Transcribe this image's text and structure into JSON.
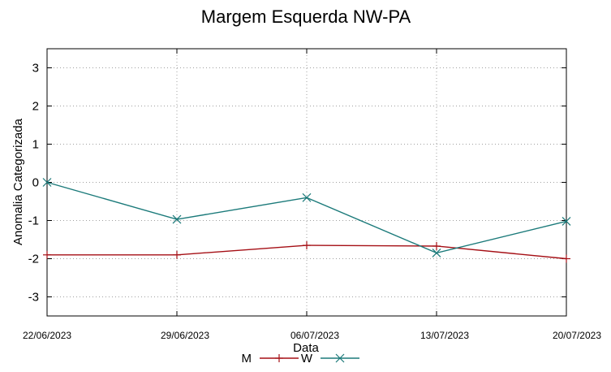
{
  "chart_data": {
    "type": "line",
    "title": "Margem Esquerda NW-PA",
    "xlabel": "Data",
    "ylabel": "Anomalia Categorizada",
    "categories": [
      "22/06/2023",
      "29/06/2023",
      "06/07/2023",
      "13/07/2023",
      "20/07/2023"
    ],
    "ylim": [
      -3.5,
      3.5
    ],
    "yticks": [
      3,
      2,
      1,
      0,
      -1,
      -2,
      -3
    ],
    "grid": true,
    "legend": "bottom-center",
    "series": [
      {
        "name": "M",
        "values": [
          -1.9,
          -1.9,
          -1.65,
          -1.67,
          -2.0
        ],
        "color": "#a50f15",
        "marker": "plus"
      },
      {
        "name": "W",
        "values": [
          0.0,
          -0.97,
          -0.4,
          -1.85,
          -1.02
        ],
        "color": "#1b7a7a",
        "marker": "cross"
      }
    ]
  }
}
